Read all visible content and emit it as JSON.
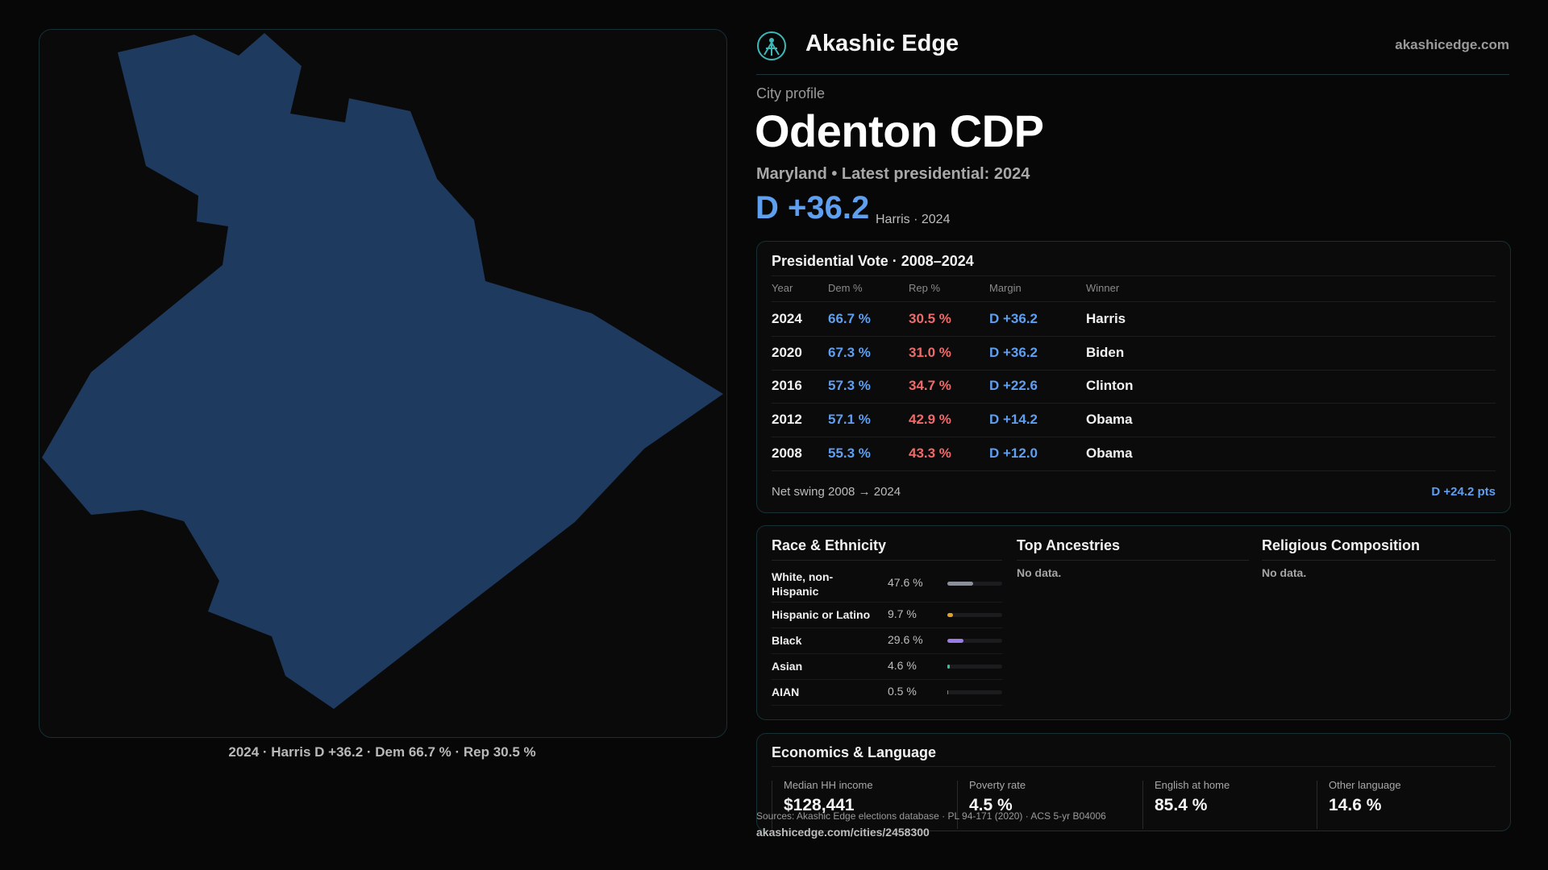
{
  "map": {
    "fill_color": "#1f3a5f",
    "caption": "2024 · Harris D +36.2 · Dem 66.7 % · Rep 30.5 %"
  },
  "header": {
    "logo_icon": "akashic-edge-logo-icon",
    "brand": "Akashic Edge",
    "site": "akashicedge.com"
  },
  "profile": {
    "eyebrow": "City profile",
    "title": "Odenton CDP",
    "subtitle": "Maryland • Latest presidential: 2024",
    "margin": "D +36.2",
    "margin_note": "Harris · 2024"
  },
  "presidential": {
    "title": "Presidential Vote · 2008–2024",
    "columns": [
      "Year",
      "Dem %",
      "Rep %",
      "Margin",
      "Winner"
    ],
    "rows": [
      {
        "year": "2024",
        "dem": "66.7 %",
        "rep": "30.5 %",
        "margin": "D +36.2",
        "winner": "Harris"
      },
      {
        "year": "2020",
        "dem": "67.3 %",
        "rep": "31.0 %",
        "margin": "D +36.2",
        "winner": "Biden"
      },
      {
        "year": "2016",
        "dem": "57.3 %",
        "rep": "34.7 %",
        "margin": "D +22.6",
        "winner": "Clinton"
      },
      {
        "year": "2012",
        "dem": "57.1 %",
        "rep": "42.9 %",
        "margin": "D +14.2",
        "winner": "Obama"
      },
      {
        "year": "2008",
        "dem": "55.3 %",
        "rep": "43.3 %",
        "margin": "D +12.0",
        "winner": "Obama"
      }
    ],
    "swing_label": "Net swing 2008 → 2024",
    "swing_value": "D +24.2 pts"
  },
  "race": {
    "title": "Race & Ethnicity",
    "rows": [
      {
        "name": "White, non-Hispanic",
        "pct": "47.6 %",
        "share": 0.476,
        "color": "#8a8f98"
      },
      {
        "name": "Hispanic or Latino",
        "pct": "9.7 %",
        "share": 0.097,
        "color": "#e0a030"
      },
      {
        "name": "Black",
        "pct": "29.6 %",
        "share": 0.296,
        "color": "#9a7be8"
      },
      {
        "name": "Asian",
        "pct": "4.6 %",
        "share": 0.046,
        "color": "#2ec4a0"
      },
      {
        "name": "AIAN",
        "pct": "0.5 %",
        "share": 0.005,
        "color": "#c07070"
      }
    ]
  },
  "ancestries": {
    "title": "Top Ancestries",
    "empty": "No data."
  },
  "religion": {
    "title": "Religious Composition",
    "empty": "No data."
  },
  "economics": {
    "title": "Economics & Language",
    "stats": [
      {
        "label": "Median HH income",
        "value": "$128,441"
      },
      {
        "label": "Poverty rate",
        "value": "4.5 %"
      },
      {
        "label": "English at home",
        "value": "85.4 %"
      },
      {
        "label": "Other language",
        "value": "14.6 %"
      }
    ]
  },
  "footer": {
    "sources": "Sources: Akashic Edge elections database · PL 94-171 (2020) · ACS 5-yr B04006",
    "url": "akashicedge.com/cities/2458300"
  }
}
